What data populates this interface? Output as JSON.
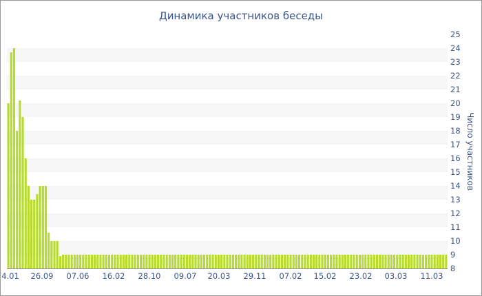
{
  "chart_data": {
    "type": "bar",
    "title": "Динамика участников беседы",
    "ylabel": "Число участников",
    "y_axis_position": "right",
    "ylim": [
      8,
      25
    ],
    "grid": "horizontal alternating bands",
    "bar_color": "#b8dc2e",
    "band_color": "#f6f6f6",
    "text_color": "#3a5488",
    "x_tick_labels": [
      "4.01",
      "26.09",
      "07.06",
      "16.02",
      "28.10",
      "09.07",
      "20.03",
      "29.11",
      "07.02",
      "15.02",
      "23.02",
      "03.03",
      "11.03"
    ],
    "y_tick_labels": [
      "8",
      "9",
      "10",
      "11",
      "12",
      "13",
      "14",
      "15",
      "16",
      "17",
      "18",
      "19",
      "20",
      "21",
      "22",
      "23",
      "24",
      "25"
    ],
    "values": [
      20,
      23.7,
      24,
      18,
      20.2,
      19,
      16,
      14,
      13,
      13,
      13.4,
      14,
      14,
      14,
      10.6,
      10,
      10,
      10,
      8.9,
      9,
      9,
      9,
      9,
      9,
      9,
      9,
      9,
      9,
      9,
      9,
      9,
      9,
      9,
      9,
      9,
      9,
      9,
      9,
      9,
      9,
      9,
      9,
      9,
      9,
      9,
      9,
      9,
      9,
      9,
      9,
      9,
      9,
      9,
      9,
      9,
      9,
      9,
      9,
      9,
      9,
      9,
      9,
      9,
      9,
      9,
      9,
      9,
      9,
      9,
      9,
      9,
      9,
      9,
      9,
      9,
      9,
      9,
      9,
      9,
      9,
      9,
      9,
      9,
      9,
      9,
      9,
      9,
      9,
      9,
      9,
      9,
      9,
      9,
      9,
      9,
      9,
      9,
      9,
      9,
      9,
      9,
      9,
      9,
      9,
      9,
      9,
      9,
      9,
      9,
      9,
      9,
      9,
      9,
      9,
      9,
      9,
      9,
      9,
      9,
      9,
      9,
      9,
      9,
      9,
      9,
      9,
      9,
      9,
      9,
      9,
      9,
      9,
      9,
      9,
      9,
      9,
      9,
      9,
      9,
      9,
      9,
      9,
      9,
      9,
      9,
      9,
      9,
      9,
      9,
      9,
      9,
      9,
      9
    ]
  }
}
